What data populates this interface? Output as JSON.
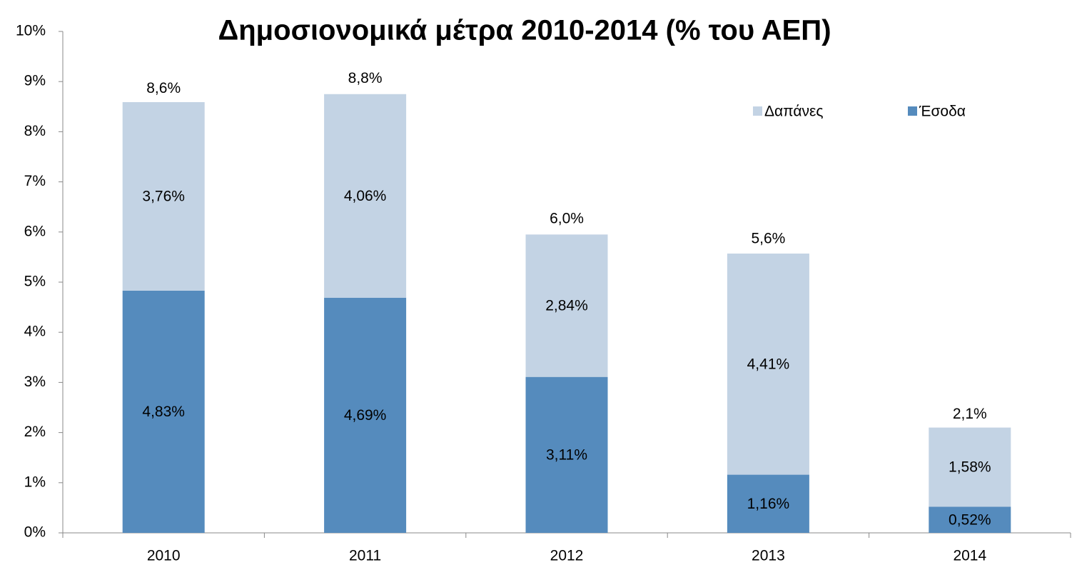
{
  "chart_data": {
    "type": "stacked_bar",
    "title": "Δημοσιονομικά μέτρα 2010-2014 (% του ΑΕΠ)",
    "categories": [
      "2010",
      "2011",
      "2012",
      "2013",
      "2014"
    ],
    "series": [
      {
        "name": "Έσοδα",
        "color": "#558bbd",
        "values": [
          4.83,
          4.69,
          3.11,
          1.16,
          0.52
        ],
        "value_labels": [
          "4,83%",
          "4,69%",
          "3,11%",
          "1,16%",
          "0,52%"
        ]
      },
      {
        "name": "Δαπάνες",
        "color": "#c3d3e4",
        "values": [
          3.76,
          4.06,
          2.84,
          4.41,
          1.58
        ],
        "value_labels": [
          "3,76%",
          "4,06%",
          "2,84%",
          "4,41%",
          "1,58%"
        ]
      }
    ],
    "totals": [
      8.6,
      8.8,
      6.0,
      5.6,
      2.1
    ],
    "total_labels": [
      "8,6%",
      "8,8%",
      "6,0%",
      "5,6%",
      "2,1%"
    ],
    "ylim": [
      0,
      10
    ],
    "yticks": [
      {
        "value": 0,
        "label": "0%"
      },
      {
        "value": 1,
        "label": "1%"
      },
      {
        "value": 2,
        "label": "2%"
      },
      {
        "value": 3,
        "label": "3%"
      },
      {
        "value": 4,
        "label": "4%"
      },
      {
        "value": 5,
        "label": "5%"
      },
      {
        "value": 6,
        "label": "6%"
      },
      {
        "value": 7,
        "label": "7%"
      },
      {
        "value": 8,
        "label": "8%"
      },
      {
        "value": 9,
        "label": "9%"
      },
      {
        "value": 10,
        "label": "10%"
      }
    ],
    "grid": false,
    "legend": "top-right"
  }
}
